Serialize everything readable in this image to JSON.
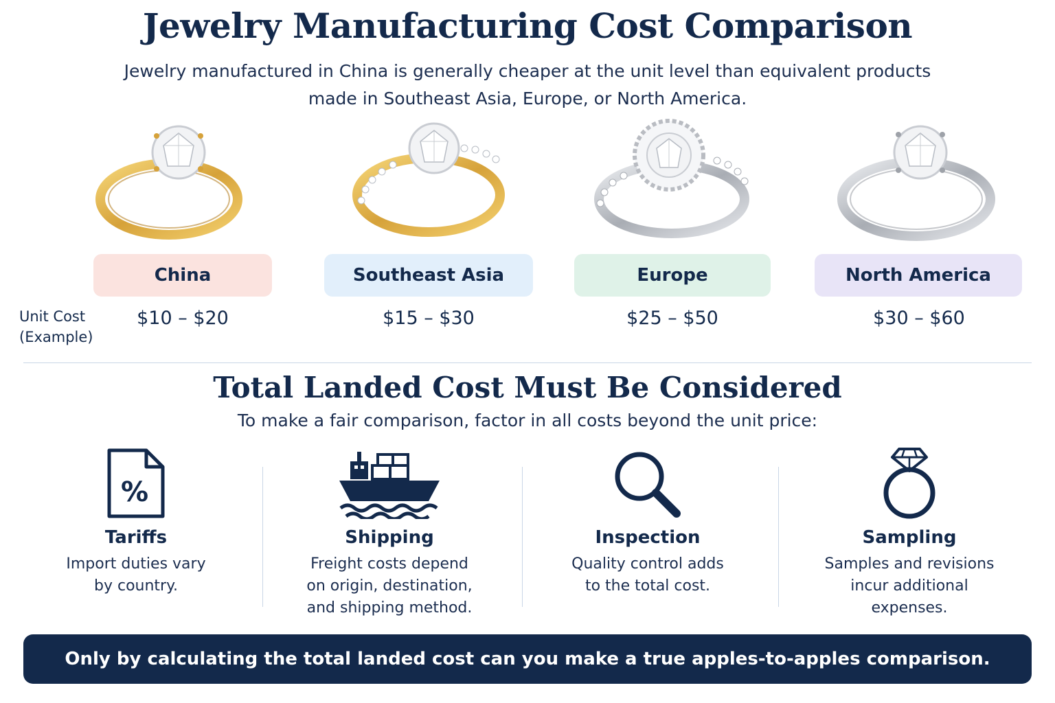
{
  "header": {
    "title": "Jewelry Manufacturing Cost Comparison",
    "intro_line1": "Jewelry manufactured in China is generally cheaper at the unit level than equivalent products",
    "intro_line2": "made in Southeast Asia, Europe, or North America."
  },
  "unit_cost": {
    "label_line1": "Unit Cost",
    "label_line2": "(Example)"
  },
  "regions": [
    {
      "name": "China",
      "cost": "$10 – $20",
      "pill_color": "#fbe3df",
      "metal": "gold"
    },
    {
      "name": "Southeast Asia",
      "cost": "$15 – $30",
      "pill_color": "#e2effb",
      "metal": "gold"
    },
    {
      "name": "Europe",
      "cost": "$25 – $50",
      "pill_color": "#dff2e8",
      "metal": "silver"
    },
    {
      "name": "North America",
      "cost": "$30 – $60",
      "pill_color": "#e8e4f7",
      "metal": "silver"
    }
  ],
  "landed": {
    "title": "Total Landed Cost Must Be Considered",
    "subtitle": "To make a fair comparison, factor in all costs beyond the unit price:"
  },
  "factors": [
    {
      "icon": "percent-document-icon",
      "title": "Tariffs",
      "desc_lines": [
        "Import duties vary",
        "by country."
      ]
    },
    {
      "icon": "cargo-ship-icon",
      "title": "Shipping",
      "desc_lines": [
        "Freight costs depend",
        "on origin, destination,",
        "and shipping method."
      ]
    },
    {
      "icon": "magnifier-icon",
      "title": "Inspection",
      "desc_lines": [
        "Quality control adds",
        "to the total cost."
      ]
    },
    {
      "icon": "diamond-ring-icon",
      "title": "Sampling",
      "desc_lines": [
        "Samples and revisions",
        "incur additional",
        "expenses."
      ]
    }
  ],
  "footer": {
    "banner": "Only by calculating the total landed cost can you make a true apples-to-apples comparison."
  },
  "colors": {
    "navy": "#13294b",
    "gold": "#d9a93a",
    "silver": "#b9bcc2"
  }
}
